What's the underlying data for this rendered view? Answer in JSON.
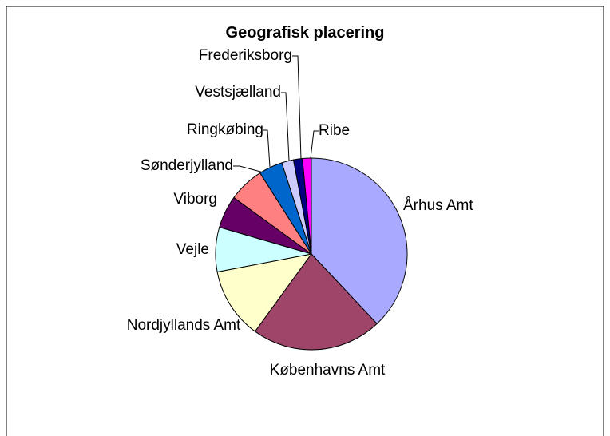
{
  "chart_data": {
    "type": "pie",
    "title": "Geografisk placering",
    "categories": [
      "Århus Amt",
      "Københavns Amt",
      "Nordjyllands Amt",
      "Vejle",
      "Viborg",
      "Sønderjylland",
      "Ringkøbing",
      "Vestsjælland",
      "Frederiksborg",
      "Ribe"
    ],
    "values": [
      38,
      22,
      12,
      7.5,
      5.5,
      6,
      4,
      2,
      1.5,
      1.5
    ],
    "colors": [
      "#a9a9ff",
      "#a0456a",
      "#ffffcc",
      "#ccffff",
      "#660066",
      "#ff8080",
      "#0066cc",
      "#ccccff",
      "#000080",
      "#ff00ff"
    ]
  }
}
